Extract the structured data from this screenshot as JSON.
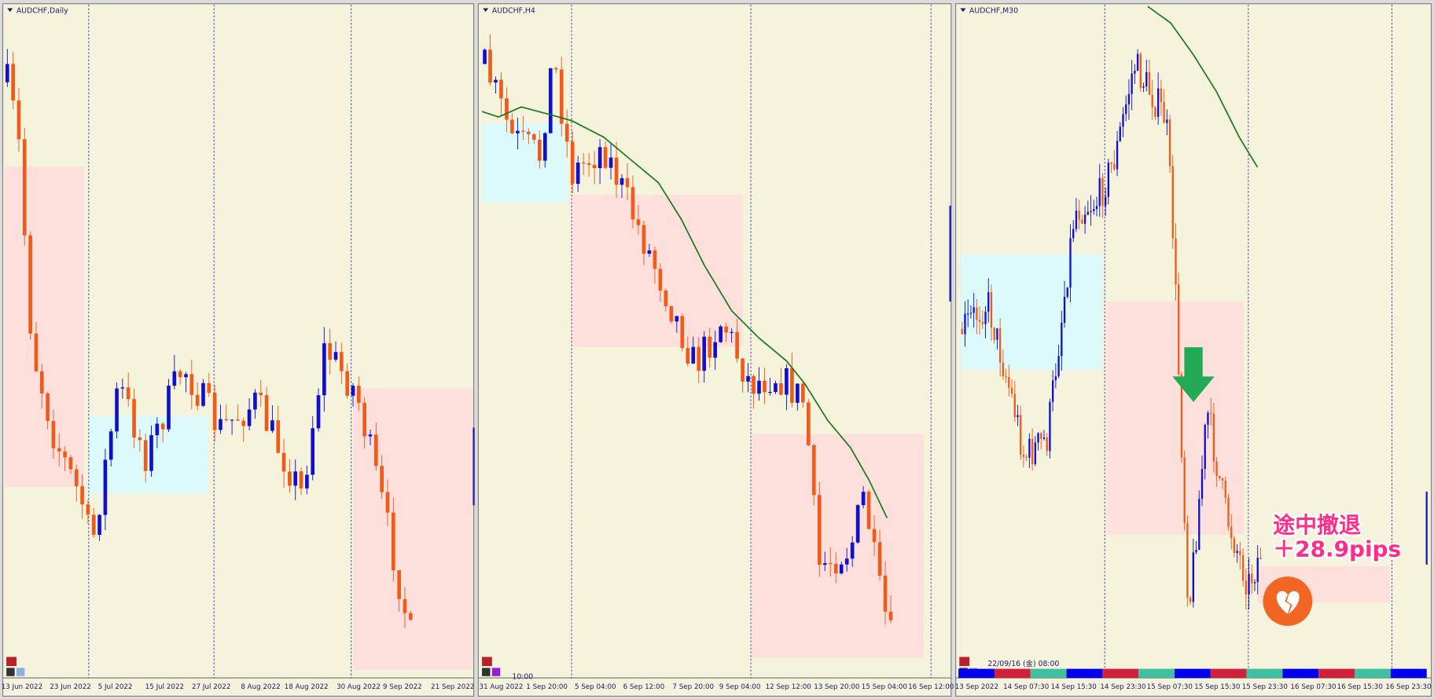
{
  "panels": [
    {
      "title": "AUDCHF,Daily",
      "x_labels": [
        "13 Jun 2022",
        "23 Jun 2022",
        "5 Jul 2022",
        "15 Jul 2022",
        "27 Jul 2022",
        "8 Aug 2022",
        "18 Aug 2022",
        "30 Aug 2022",
        "9 Sep 2022",
        "21 Sep 2022"
      ]
    },
    {
      "title": "AUDCHF,H4",
      "cursor_time": "10:00",
      "x_labels": [
        "31 Aug 2022",
        "1 Sep 20:00",
        "5 Sep 04:00",
        "6 Sep 12:00",
        "7 Sep 20:00",
        "9 Sep 04:00",
        "12 Sep 12:00",
        "13 Sep 20:00",
        "15 Sep 04:00",
        "16 Sep 12:00"
      ]
    },
    {
      "title": "AUDCHF,M30",
      "cursor_time": "22/09/16 (金) 08:00",
      "x_labels": [
        "13 Sep 2022",
        "14 Sep 07:30",
        "14 Sep 15:30",
        "14 Sep 23:30",
        "15 Sep 07:30",
        "15 Sep 15:30",
        "15 Sep 23:30",
        "16 Sep 07:30",
        "16 Sep 15:30",
        "16 Sep 23:30"
      ]
    }
  ],
  "annotation": {
    "line1": "途中撤退",
    "line2": "＋28.9pips"
  }
}
